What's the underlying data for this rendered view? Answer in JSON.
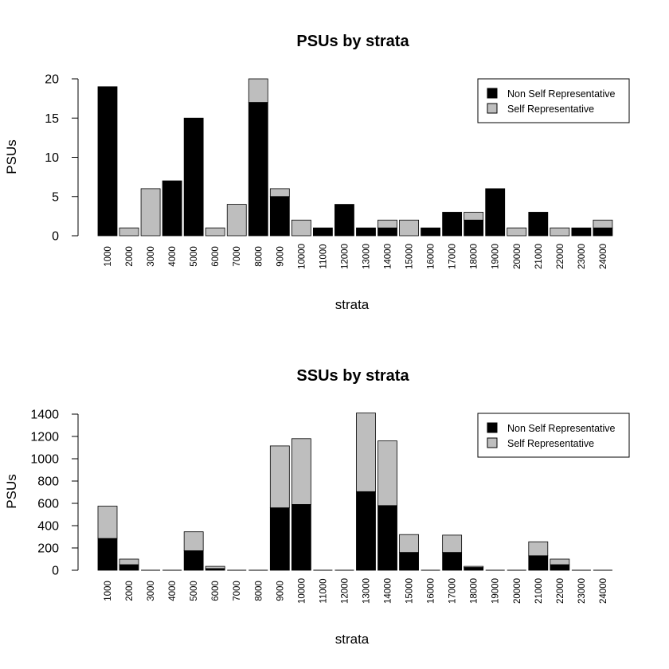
{
  "chart_data": [
    {
      "type": "bar",
      "stacked": true,
      "title": "PSUs by strata",
      "xlabel": "strata",
      "ylabel": "PSUs",
      "ylim": [
        0,
        20
      ],
      "yticks": [
        "0",
        "5",
        "10",
        "15",
        "20"
      ],
      "ytick_values": [
        0,
        5,
        10,
        15,
        20
      ],
      "categories": [
        "1000",
        "2000",
        "3000",
        "4000",
        "5000",
        "6000",
        "7000",
        "8000",
        "9000",
        "10000",
        "11000",
        "12000",
        "13000",
        "14000",
        "15000",
        "16000",
        "17000",
        "18000",
        "19000",
        "20000",
        "21000",
        "22000",
        "23000",
        "24000"
      ],
      "series": [
        {
          "name": "Non Self Representative",
          "color": "#000000",
          "values": [
            19,
            0,
            0,
            7,
            15,
            0,
            0,
            17,
            5,
            0,
            1,
            4,
            1,
            1,
            0,
            1,
            3,
            2,
            6,
            0,
            3,
            0,
            1,
            1
          ]
        },
        {
          "name": "Self Representative",
          "color": "#bebebe",
          "values": [
            0,
            1,
            6,
            0,
            0,
            1,
            4,
            3,
            1,
            2,
            0,
            0,
            0,
            1,
            2,
            0,
            0,
            1,
            0,
            1,
            0,
            1,
            0,
            1
          ]
        }
      ],
      "legend_position": "top-right"
    },
    {
      "type": "bar",
      "stacked": true,
      "title": "SSUs by strata",
      "xlabel": "strata",
      "ylabel": "PSUs",
      "ylim": [
        0,
        1400
      ],
      "yticks": [
        "0",
        "200",
        "400",
        "600",
        "800",
        "1000",
        "1200",
        "1400"
      ],
      "ytick_values": [
        0,
        200,
        400,
        600,
        800,
        1000,
        1200,
        1400
      ],
      "categories": [
        "1000",
        "2000",
        "3000",
        "4000",
        "5000",
        "6000",
        "7000",
        "8000",
        "9000",
        "10000",
        "11000",
        "12000",
        "13000",
        "14000",
        "15000",
        "16000",
        "17000",
        "18000",
        "19000",
        "20000",
        "21000",
        "22000",
        "23000",
        "24000"
      ],
      "series": [
        {
          "name": "Non Self Representative",
          "color": "#000000",
          "values": [
            285,
            50,
            0,
            0,
            175,
            15,
            0,
            0,
            560,
            590,
            0,
            0,
            705,
            580,
            160,
            0,
            160,
            25,
            0,
            0,
            130,
            50,
            0,
            0
          ]
        },
        {
          "name": "Self Representative",
          "color": "#bebebe",
          "values": [
            290,
            50,
            0,
            0,
            170,
            20,
            0,
            0,
            555,
            590,
            0,
            0,
            705,
            580,
            160,
            0,
            155,
            10,
            0,
            0,
            125,
            50,
            0,
            0
          ]
        }
      ],
      "legend_position": "top-right"
    }
  ]
}
